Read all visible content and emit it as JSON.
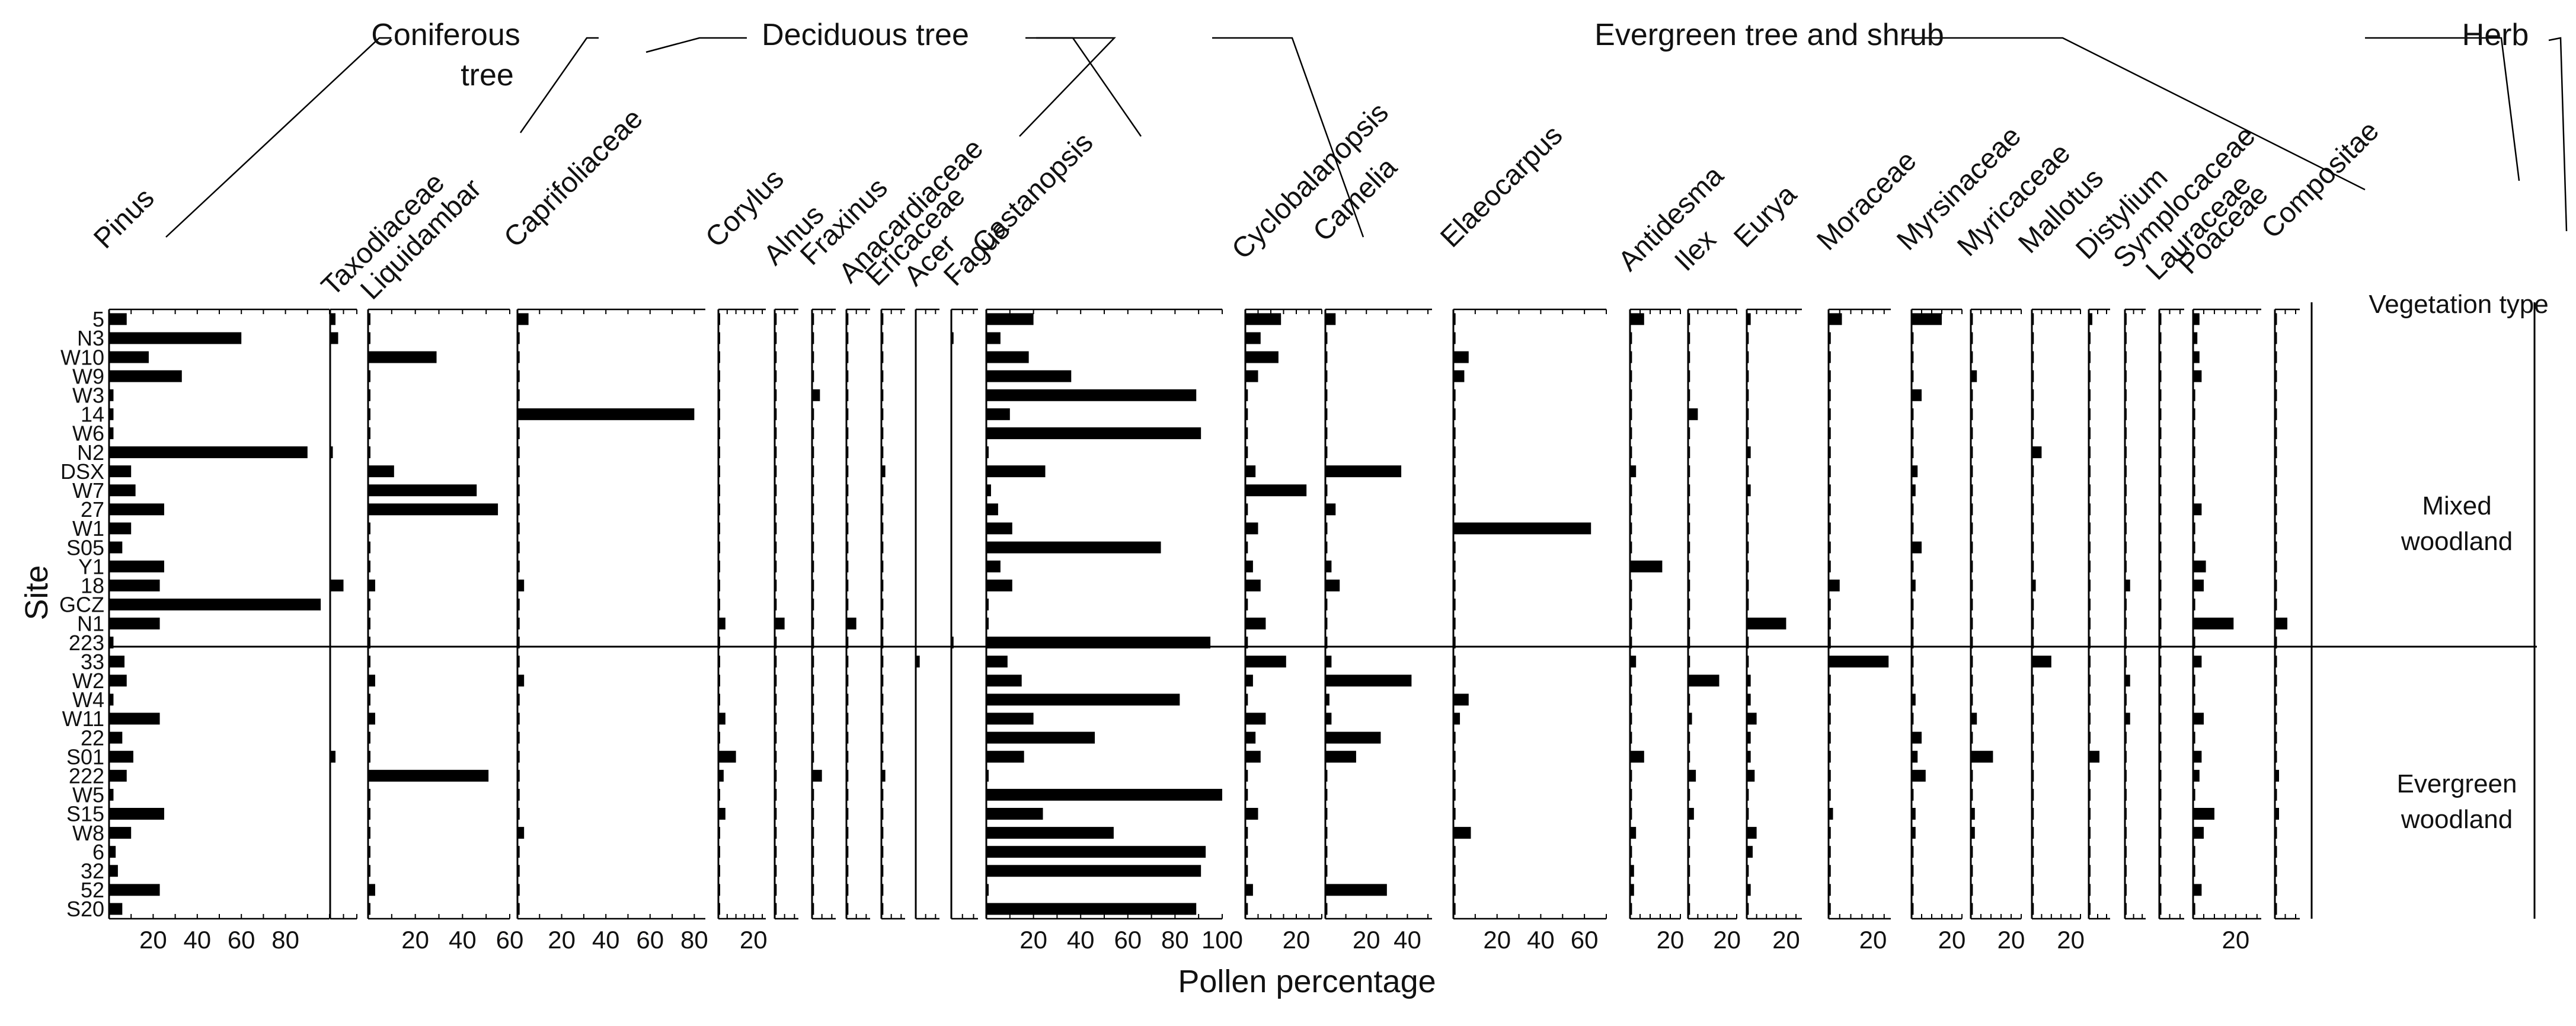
{
  "chart_data": {
    "type": "bar",
    "orientation": "horizontal",
    "title": "",
    "xlabel": "Pollen percentage",
    "ylabel": "Site",
    "sites": [
      "5",
      "N3",
      "W10",
      "W9",
      "W3",
      "14",
      "W6",
      "N2",
      "DSX",
      "W7",
      "27",
      "W1",
      "S05",
      "Y1",
      "18",
      "GCZ",
      "N1",
      "223",
      "33",
      "W2",
      "W4",
      "W11",
      "22",
      "S01",
      "222",
      "W5",
      "S15",
      "W8",
      "6",
      "32",
      "52",
      "S20"
    ],
    "groups": [
      {
        "label": "Coniferous\ntree"
      },
      {
        "label": "Deciduous tree"
      },
      {
        "label": "Evergreen tree and shrub"
      },
      {
        "label": "Herb"
      }
    ],
    "vegetation_types": [
      {
        "label": "Vegetation type"
      },
      {
        "label": "Mixed\nwoodland"
      },
      {
        "label": "Evergreen\nwoodland"
      }
    ],
    "taxa": [
      {
        "name": "Pinus",
        "xlim": [
          0,
          100
        ],
        "ticks": [
          20,
          40,
          60,
          80
        ],
        "values": [
          8,
          60,
          18,
          33,
          2,
          2,
          2,
          90,
          10,
          12,
          25,
          10,
          6,
          25,
          23,
          96,
          23,
          2,
          7,
          8,
          2,
          23,
          6,
          11,
          8,
          2,
          25,
          10,
          3,
          4,
          23,
          6
        ]
      },
      {
        "name": "Taxodiaceae",
        "xlim": [
          0,
          10
        ],
        "ticks": [],
        "values": [
          2,
          3,
          0,
          0,
          0,
          0,
          0,
          1,
          0,
          0,
          0,
          0,
          0,
          0,
          5,
          0,
          0,
          0,
          0,
          0,
          0,
          0,
          0,
          2,
          0,
          0,
          0,
          0,
          0,
          0,
          0,
          0
        ]
      },
      {
        "name": "Liquidambar",
        "xlim": [
          0,
          60
        ],
        "ticks": [
          20,
          40,
          60
        ],
        "values": [
          1,
          1,
          29,
          1,
          1,
          1,
          1,
          1,
          11,
          46,
          55,
          1,
          1,
          1,
          3,
          1,
          1,
          1,
          1,
          3,
          1,
          3,
          1,
          1,
          51,
          1,
          1,
          1,
          1,
          1,
          3,
          1
        ]
      },
      {
        "name": "Caprifoliaceae",
        "xlim": [
          0,
          85
        ],
        "ticks": [
          20,
          40,
          60,
          80
        ],
        "values": [
          5,
          1,
          1,
          1,
          1,
          80,
          1,
          1,
          1,
          1,
          1,
          1,
          1,
          1,
          3,
          1,
          1,
          1,
          1,
          3,
          1,
          1,
          1,
          1,
          1,
          1,
          1,
          3,
          1,
          1,
          1,
          1
        ]
      },
      {
        "name": "Corylus",
        "xlim": [
          0,
          27
        ],
        "ticks": [
          20
        ],
        "values": [
          1,
          1,
          1,
          1,
          1,
          1,
          1,
          1,
          1,
          1,
          1,
          1,
          1,
          1,
          1,
          1,
          4,
          1,
          1,
          1,
          1,
          4,
          1,
          10,
          3,
          1,
          4,
          1,
          1,
          1,
          1,
          1
        ]
      },
      {
        "name": "Alnus",
        "xlim": [
          0,
          12
        ],
        "ticks": [],
        "values": [
          1,
          1,
          1,
          1,
          1,
          1,
          1,
          1,
          1,
          1,
          1,
          1,
          1,
          1,
          1,
          1,
          5,
          1,
          1,
          1,
          1,
          1,
          1,
          1,
          1,
          1,
          1,
          1,
          1,
          1,
          1,
          1
        ]
      },
      {
        "name": "Fraxinus",
        "xlim": [
          0,
          12
        ],
        "ticks": [],
        "values": [
          1,
          1,
          1,
          1,
          4,
          1,
          1,
          1,
          1,
          1,
          1,
          1,
          1,
          1,
          1,
          1,
          1,
          1,
          1,
          1,
          1,
          1,
          1,
          1,
          5,
          1,
          1,
          1,
          1,
          1,
          1,
          1
        ]
      },
      {
        "name": "Anacardiaceae",
        "xlim": [
          0,
          12
        ],
        "ticks": [],
        "values": [
          1,
          1,
          1,
          1,
          1,
          1,
          1,
          1,
          1,
          1,
          1,
          1,
          1,
          1,
          1,
          1,
          5,
          1,
          1,
          1,
          1,
          1,
          1,
          1,
          1,
          1,
          1,
          1,
          1,
          1,
          1,
          1
        ]
      },
      {
        "name": "Ericaceae",
        "xlim": [
          0,
          12
        ],
        "ticks": [],
        "values": [
          1,
          1,
          1,
          1,
          1,
          1,
          1,
          1,
          2,
          1,
          1,
          1,
          1,
          1,
          1,
          1,
          1,
          1,
          1,
          1,
          1,
          1,
          1,
          1,
          2,
          1,
          1,
          1,
          1,
          1,
          1,
          1
        ]
      },
      {
        "name": "Acer",
        "xlim": [
          0,
          12
        ],
        "ticks": [],
        "values": [
          0,
          0,
          0,
          0,
          0,
          0,
          0,
          0,
          0,
          0,
          0,
          0,
          0,
          0,
          0,
          0,
          0,
          0,
          2,
          0,
          0,
          0,
          0,
          0,
          0,
          0,
          0,
          0,
          0,
          0,
          0,
          0
        ]
      },
      {
        "name": "Fagus",
        "xlim": [
          0,
          12
        ],
        "ticks": [],
        "values": [
          0,
          1,
          0,
          0,
          0,
          0,
          0,
          0,
          0,
          0,
          0,
          0,
          0,
          0,
          0,
          0,
          0,
          1,
          0,
          0,
          0,
          0,
          0,
          0,
          0,
          0,
          0,
          0,
          0,
          0,
          0,
          0
        ]
      },
      {
        "name": "Castanopsis",
        "xlim": [
          0,
          100
        ],
        "ticks": [
          20,
          40,
          60,
          80,
          100
        ],
        "values": [
          20,
          6,
          18,
          36,
          89,
          10,
          91,
          1,
          25,
          2,
          5,
          11,
          74,
          6,
          11,
          1,
          1,
          95,
          9,
          15,
          82,
          20,
          46,
          16,
          1,
          100,
          24,
          54,
          93,
          91,
          1,
          89
        ]
      },
      {
        "name": "Cyclobalanopsis",
        "xlim": [
          0,
          30
        ],
        "ticks": [
          20
        ],
        "values": [
          14,
          6,
          13,
          5,
          1,
          1,
          1,
          1,
          4,
          24,
          1,
          5,
          1,
          3,
          6,
          1,
          8,
          1,
          16,
          3,
          1,
          8,
          4,
          6,
          1,
          1,
          5,
          1,
          1,
          1,
          3,
          1
        ]
      },
      {
        "name": "Camelia",
        "xlim": [
          0,
          52
        ],
        "ticks": [
          20,
          40
        ],
        "values": [
          5,
          1,
          1,
          1,
          1,
          1,
          1,
          1,
          37,
          1,
          5,
          1,
          1,
          3,
          7,
          1,
          1,
          1,
          3,
          42,
          2,
          3,
          27,
          15,
          1,
          1,
          1,
          1,
          1,
          1,
          30,
          1
        ]
      },
      {
        "name": "Elaeocarpus",
        "xlim": [
          0,
          70
        ],
        "ticks": [
          20,
          40,
          60
        ],
        "values": [
          1,
          1,
          7,
          5,
          1,
          1,
          1,
          1,
          1,
          1,
          1,
          63,
          1,
          1,
          1,
          1,
          1,
          1,
          1,
          1,
          7,
          3,
          1,
          1,
          1,
          1,
          1,
          8,
          1,
          1,
          1,
          1
        ]
      },
      {
        "name": "Antidesma",
        "xlim": [
          0,
          25
        ],
        "ticks": [
          20
        ],
        "values": [
          7,
          1,
          1,
          1,
          1,
          1,
          1,
          1,
          3,
          1,
          1,
          1,
          1,
          16,
          1,
          1,
          1,
          1,
          3,
          1,
          1,
          1,
          1,
          7,
          1,
          1,
          1,
          3,
          1,
          2,
          2,
          1
        ]
      },
      {
        "name": "Ilex",
        "xlim": [
          0,
          25
        ],
        "ticks": [
          20
        ],
        "values": [
          1,
          1,
          1,
          1,
          1,
          5,
          1,
          1,
          1,
          1,
          1,
          1,
          1,
          1,
          1,
          1,
          1,
          1,
          1,
          16,
          1,
          2,
          1,
          1,
          4,
          1,
          3,
          1,
          1,
          1,
          1,
          1
        ]
      },
      {
        "name": "Eurya",
        "xlim": [
          0,
          28
        ],
        "ticks": [
          20
        ],
        "values": [
          2,
          1,
          1,
          1,
          1,
          1,
          1,
          2,
          1,
          2,
          1,
          1,
          1,
          1,
          1,
          1,
          20,
          1,
          1,
          2,
          2,
          5,
          2,
          2,
          4,
          1,
          1,
          5,
          3,
          1,
          2,
          1
        ]
      },
      {
        "name": "Moraceae",
        "xlim": [
          0,
          28
        ],
        "ticks": [
          20
        ],
        "values": [
          6,
          1,
          1,
          1,
          1,
          1,
          1,
          1,
          1,
          1,
          1,
          1,
          1,
          1,
          5,
          1,
          1,
          1,
          27,
          1,
          1,
          1,
          1,
          1,
          1,
          1,
          2,
          1,
          1,
          1,
          1,
          1
        ]
      },
      {
        "name": "Myrsinaceae",
        "xlim": [
          0,
          25
        ],
        "ticks": [
          20
        ],
        "values": [
          15,
          1,
          1,
          1,
          5,
          1,
          1,
          1,
          3,
          2,
          1,
          1,
          5,
          1,
          2,
          1,
          1,
          1,
          1,
          1,
          2,
          1,
          5,
          3,
          7,
          1,
          2,
          2,
          1,
          1,
          1,
          1
        ]
      },
      {
        "name": "Myricaceae",
        "xlim": [
          0,
          25
        ],
        "ticks": [
          20
        ],
        "values": [
          1,
          1,
          1,
          3,
          1,
          1,
          1,
          1,
          1,
          1,
          1,
          1,
          1,
          1,
          1,
          1,
          1,
          1,
          1,
          1,
          1,
          3,
          1,
          11,
          1,
          1,
          2,
          2,
          1,
          1,
          1,
          1
        ]
      },
      {
        "name": "Mallotus",
        "xlim": [
          0,
          25
        ],
        "ticks": [
          20
        ],
        "values": [
          1,
          1,
          1,
          1,
          1,
          1,
          1,
          5,
          1,
          1,
          1,
          1,
          1,
          1,
          2,
          1,
          1,
          1,
          10,
          1,
          1,
          1,
          1,
          1,
          1,
          1,
          1,
          1,
          1,
          1,
          1,
          1
        ]
      },
      {
        "name": "Distylium",
        "xlim": [
          0,
          12
        ],
        "ticks": [],
        "values": [
          2,
          1,
          1,
          1,
          1,
          1,
          1,
          1,
          1,
          1,
          1,
          1,
          1,
          1,
          1,
          1,
          1,
          1,
          1,
          1,
          1,
          1,
          1,
          6,
          1,
          1,
          1,
          1,
          1,
          1,
          1,
          1
        ]
      },
      {
        "name": "Symplocaceae",
        "xlim": [
          0,
          12
        ],
        "ticks": [],
        "values": [
          1,
          1,
          1,
          1,
          1,
          1,
          1,
          1,
          1,
          1,
          1,
          1,
          1,
          1,
          3,
          1,
          1,
          1,
          1,
          3,
          1,
          3,
          1,
          1,
          1,
          1,
          1,
          1,
          1,
          1,
          1,
          1
        ]
      },
      {
        "name": "Lauraceae",
        "xlim": [
          0,
          12
        ],
        "ticks": [],
        "values": [
          1,
          1,
          1,
          1,
          1,
          1,
          1,
          1,
          1,
          1,
          1,
          1,
          1,
          1,
          1,
          1,
          1,
          1,
          1,
          1,
          1,
          1,
          1,
          1,
          1,
          1,
          1,
          1,
          1,
          1,
          1,
          1
        ]
      },
      {
        "name": "Poaceae",
        "xlim": [
          0,
          32
        ],
        "ticks": [
          20
        ],
        "values": [
          3,
          2,
          3,
          4,
          1,
          1,
          1,
          1,
          1,
          1,
          4,
          1,
          1,
          6,
          5,
          1,
          19,
          1,
          4,
          1,
          1,
          5,
          1,
          4,
          3,
          1,
          10,
          5,
          1,
          1,
          4,
          1
        ]
      },
      {
        "name": "Compositae",
        "xlim": [
          0,
          12
        ],
        "ticks": [],
        "values": [
          1,
          1,
          1,
          1,
          1,
          1,
          1,
          1,
          1,
          1,
          1,
          1,
          1,
          1,
          1,
          1,
          6,
          1,
          1,
          1,
          1,
          1,
          1,
          1,
          2,
          1,
          2,
          1,
          1,
          1,
          1,
          1
        ]
      }
    ]
  }
}
